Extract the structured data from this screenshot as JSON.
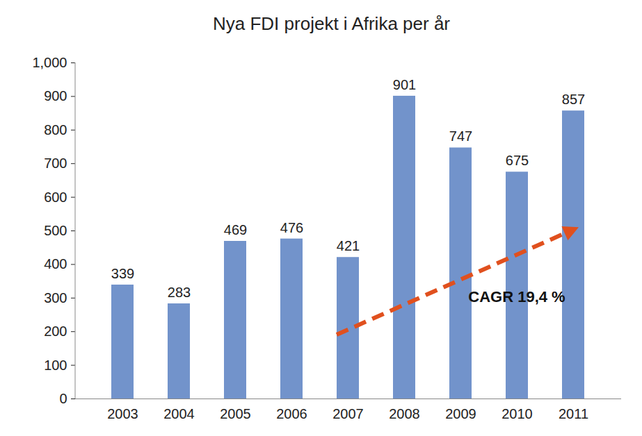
{
  "chart_data": {
    "type": "bar",
    "title": "Nya FDI projekt i Afrika per år",
    "categories": [
      "2003",
      "2004",
      "2005",
      "2006",
      "2007",
      "2008",
      "2009",
      "2010",
      "2011"
    ],
    "values": [
      339,
      283,
      469,
      476,
      421,
      901,
      747,
      675,
      857
    ],
    "color": "#7293cb",
    "ylim": [
      0,
      1000
    ],
    "yticks": [
      0,
      100,
      200,
      300,
      400,
      500,
      600,
      700,
      800,
      900,
      1000
    ],
    "grid": false,
    "data_labels": true,
    "annotations": [
      "CAGR 19,4 %"
    ]
  }
}
